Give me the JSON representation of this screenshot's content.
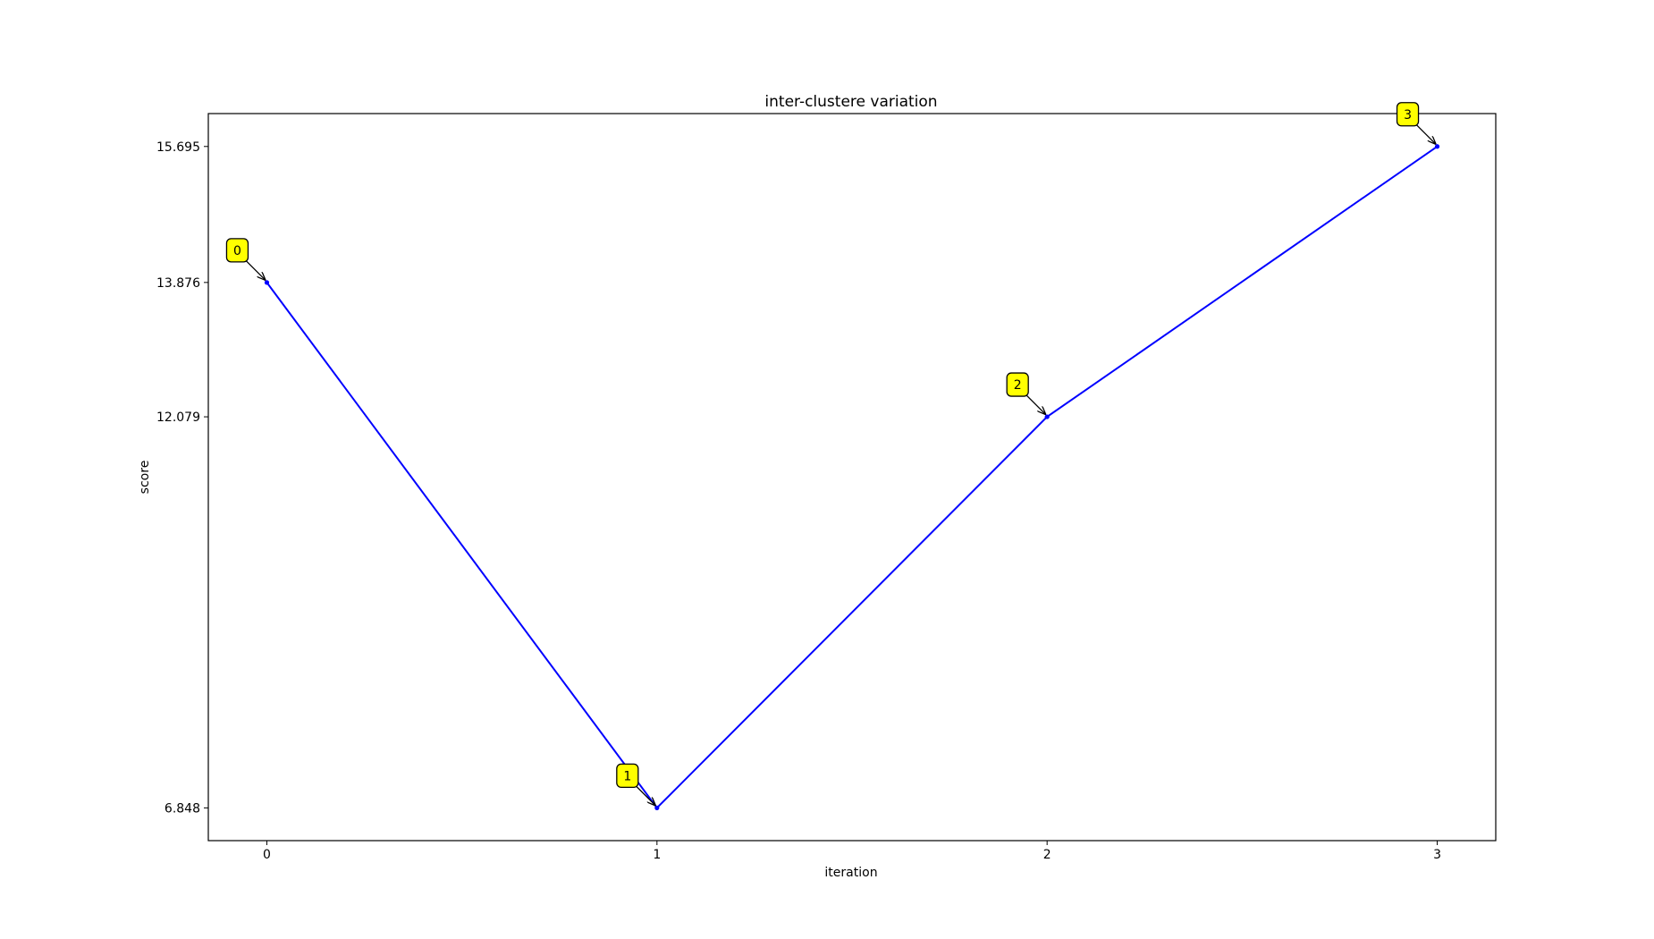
{
  "chart_data": {
    "type": "line",
    "title": "inter-clustere variation",
    "xlabel": "iteration",
    "ylabel": "score",
    "x": [
      0,
      1,
      2,
      3
    ],
    "xticks": [
      "0",
      "1",
      "2",
      "3"
    ],
    "yticks": [
      "6.848",
      "12.079",
      "13.876",
      "15.695"
    ],
    "xlim": [
      -0.15,
      3.15
    ],
    "ylim": [
      6.41,
      16.135
    ],
    "series": [
      {
        "values": [
          13.876,
          6.848,
          12.079,
          15.695
        ],
        "color": "#0000ff"
      }
    ],
    "annotations": [
      "0",
      "1",
      "2",
      "3"
    ],
    "annotation_color": "#ffff00",
    "grid": false,
    "legend": "none"
  }
}
